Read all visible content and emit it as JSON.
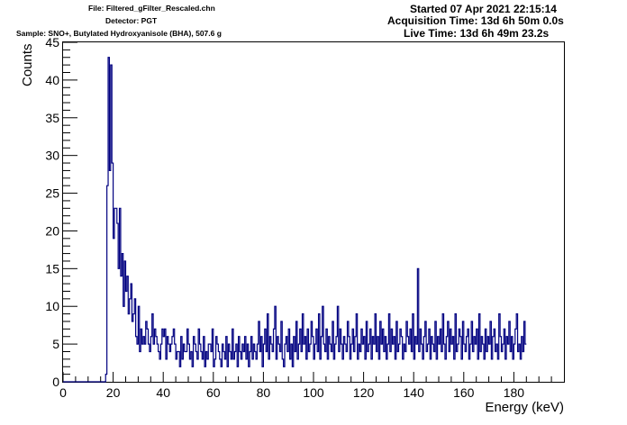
{
  "header": {
    "file": "File: Filtered_gFilter_Rescaled.chn",
    "detector": "Detector: PGT",
    "sample": "Sample: SNO+, Butylated Hydroxyanisole (BHA), 507.6 g",
    "started": "Started 07 Apr 2021 22:15:14",
    "acquisition": "Acquisition Time: 13d 6h 50m 0.0s",
    "live": "Live Time: 13d 6h 49m 23.2s"
  },
  "chart_data": {
    "type": "line",
    "xlabel": "Energy (keV)",
    "ylabel": "Counts",
    "xlim": [
      0,
      200
    ],
    "ylim": [
      0,
      45
    ],
    "x_ticks": [
      0,
      20,
      40,
      60,
      80,
      100,
      120,
      140,
      160,
      180
    ],
    "y_ticks": [
      0,
      5,
      10,
      15,
      20,
      25,
      30,
      35,
      40,
      45
    ],
    "line_color": "#000080",
    "bin_width": 0.5,
    "start_x": 0,
    "counts": [
      0,
      0,
      0,
      0,
      0,
      0,
      0,
      0,
      0,
      0,
      0,
      0,
      0,
      0,
      0,
      0,
      0,
      0,
      0,
      0,
      0,
      0,
      0,
      0,
      0,
      0,
      0,
      0,
      0,
      0,
      0,
      0,
      0,
      0,
      1,
      26,
      43,
      28,
      42,
      29,
      19,
      23,
      23,
      21,
      15,
      23,
      14,
      17,
      10,
      16,
      12,
      14,
      9,
      11,
      13,
      8,
      9,
      11,
      6,
      5,
      10,
      4,
      7,
      5,
      6,
      5,
      8,
      7,
      5,
      4,
      6,
      9,
      5,
      7,
      6,
      5,
      4,
      3,
      5,
      7,
      6,
      7,
      3,
      6,
      5,
      4,
      5,
      6,
      7,
      5,
      3,
      4,
      4,
      2,
      6,
      3,
      5,
      4,
      4,
      7,
      5,
      3,
      4,
      2,
      6,
      5,
      4,
      3,
      7,
      5,
      4,
      3,
      6,
      2,
      4,
      3,
      5,
      5,
      4,
      7,
      2,
      3,
      6,
      5,
      4,
      3,
      2,
      5,
      4,
      3,
      6,
      2,
      5,
      4,
      3,
      7,
      3,
      4,
      5,
      2,
      6,
      4,
      3,
      5,
      4,
      6,
      3,
      5,
      2,
      4,
      6,
      3,
      5,
      4,
      3,
      5,
      8,
      4,
      6,
      2,
      5,
      7,
      4,
      9,
      3,
      6,
      5,
      4,
      7,
      10,
      3,
      6,
      5,
      4,
      8,
      3,
      2,
      5,
      6,
      4,
      7,
      3,
      5,
      2,
      6,
      4,
      8,
      3,
      5,
      7,
      4,
      9,
      5,
      6,
      3,
      7,
      4,
      5,
      8,
      6,
      3,
      5,
      7,
      4,
      9,
      3,
      6,
      10,
      5,
      4,
      7,
      3,
      6,
      5,
      4,
      8,
      3,
      5,
      6,
      10,
      4,
      7,
      5,
      3,
      6,
      5,
      4,
      8,
      6,
      3,
      5,
      7,
      4,
      6,
      9,
      3,
      5,
      4,
      7,
      5,
      6,
      3,
      8,
      4,
      5,
      7,
      3,
      6,
      5,
      9,
      4,
      6,
      3,
      8,
      5,
      7,
      4,
      6,
      3,
      5,
      9,
      4,
      7,
      5,
      6,
      3,
      8,
      4,
      5,
      7,
      6,
      3,
      5,
      4,
      8,
      6,
      5,
      7,
      4,
      9,
      3,
      6,
      5,
      15,
      4,
      7,
      5,
      3,
      6,
      8,
      4,
      5,
      7,
      3,
      6,
      5,
      4,
      8,
      3,
      6,
      5,
      7,
      4,
      9,
      5,
      3,
      6,
      8,
      4,
      7,
      5,
      6,
      3,
      9,
      4,
      5,
      7,
      6,
      3,
      8,
      5,
      4,
      6,
      7,
      3,
      5,
      8,
      4,
      6,
      5,
      7,
      3,
      9,
      4,
      6,
      5,
      3,
      7,
      4,
      6,
      5,
      8,
      3,
      6,
      7,
      4,
      5,
      3,
      9,
      6,
      4,
      5,
      7,
      3,
      6,
      5,
      8,
      4,
      6,
      3,
      5,
      7,
      9,
      4,
      5,
      3,
      6,
      4,
      8,
      5
    ]
  }
}
